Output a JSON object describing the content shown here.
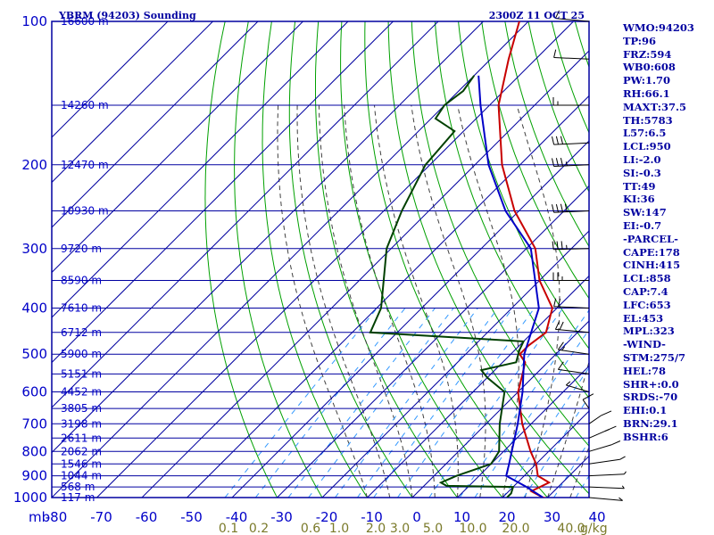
{
  "chart_data": {
    "type": "skew-t",
    "title": "YBRM (94203) Sounding",
    "valid_time": "2300Z 11 OCT 25",
    "pressure_unit_label": "mb",
    "mixing_ratio_unit_label": "g/kg",
    "pressure_ticks": [
      100,
      200,
      300,
      400,
      500,
      600,
      700,
      800,
      900,
      1000
    ],
    "temperature_ticks": [
      -80,
      -70,
      -60,
      -50,
      -40,
      -30,
      -20,
      -10,
      0,
      10,
      20,
      30,
      40
    ],
    "mixing_ratio_ticks": [
      "0.1",
      "0.2",
      "0.6",
      "1.0",
      "2.0",
      "3.0",
      "5.0",
      "10.0",
      "20.0",
      "40.0"
    ],
    "height_labels": [
      {
        "p": 100,
        "label": "16600 m"
      },
      {
        "p": 150,
        "label": "14260 m"
      },
      {
        "p": 200,
        "label": "12470 m"
      },
      {
        "p": 250,
        "label": "10930 m"
      },
      {
        "p": 300,
        "label": "9720 m"
      },
      {
        "p": 350,
        "label": "8590 m"
      },
      {
        "p": 400,
        "label": "7610 m"
      },
      {
        "p": 450,
        "label": "6712 m"
      },
      {
        "p": 500,
        "label": "5900 m"
      },
      {
        "p": 550,
        "label": "5151 m"
      },
      {
        "p": 600,
        "label": "4452 m"
      },
      {
        "p": 650,
        "label": "3805 m"
      },
      {
        "p": 700,
        "label": "3198 m"
      },
      {
        "p": 750,
        "label": "2611 m"
      },
      {
        "p": 800,
        "label": "2062 m"
      },
      {
        "p": 850,
        "label": "1546 m"
      },
      {
        "p": 900,
        "label": "1044 m"
      },
      {
        "p": 950,
        "label": "568 m"
      },
      {
        "p": 1000,
        "label": "117 m"
      }
    ],
    "series": [
      {
        "name": "Temperature",
        "color": "#c80000",
        "points": [
          {
            "p": 1005,
            "t": 30
          },
          {
            "p": 1000,
            "t": 29
          },
          {
            "p": 970,
            "t": 25
          },
          {
            "p": 930,
            "t": 27
          },
          {
            "p": 900,
            "t": 23
          },
          {
            "p": 850,
            "t": 20
          },
          {
            "p": 800,
            "t": 16
          },
          {
            "p": 700,
            "t": 8
          },
          {
            "p": 600,
            "t": 0
          },
          {
            "p": 550,
            "t": -3
          },
          {
            "p": 520,
            "t": -5
          },
          {
            "p": 500,
            "t": -8
          },
          {
            "p": 480,
            "t": -8
          },
          {
            "p": 450,
            "t": -7
          },
          {
            "p": 400,
            "t": -11
          },
          {
            "p": 350,
            "t": -20
          },
          {
            "p": 300,
            "t": -28
          },
          {
            "p": 250,
            "t": -41
          },
          {
            "p": 200,
            "t": -54
          },
          {
            "p": 150,
            "t": -68
          },
          {
            "p": 120,
            "t": -76
          },
          {
            "p": 100,
            "t": -82
          }
        ]
      },
      {
        "name": "Dewpoint",
        "color": "#004000",
        "points": [
          {
            "p": 1000,
            "t": 21
          },
          {
            "p": 980,
            "t": 21
          },
          {
            "p": 950,
            "t": 20
          },
          {
            "p": 945,
            "t": 5
          },
          {
            "p": 930,
            "t": 3
          },
          {
            "p": 900,
            "t": 5
          },
          {
            "p": 850,
            "t": 10
          },
          {
            "p": 800,
            "t": 9
          },
          {
            "p": 700,
            "t": 3
          },
          {
            "p": 600,
            "t": -3
          },
          {
            "p": 560,
            "t": -10
          },
          {
            "p": 540,
            "t": -13
          },
          {
            "p": 520,
            "t": -7
          },
          {
            "p": 490,
            "t": -9
          },
          {
            "p": 470,
            "t": -10
          },
          {
            "p": 450,
            "t": -46
          },
          {
            "p": 400,
            "t": -49
          },
          {
            "p": 300,
            "t": -61
          },
          {
            "p": 250,
            "t": -66
          },
          {
            "p": 200,
            "t": -71
          },
          {
            "p": 170,
            "t": -72
          },
          {
            "p": 160,
            "t": -79
          },
          {
            "p": 150,
            "t": -80
          },
          {
            "p": 140,
            "t": -79
          },
          {
            "p": 130,
            "t": -80
          }
        ]
      },
      {
        "name": "Parcel",
        "color": "#0000c8",
        "points": [
          {
            "p": 1000,
            "t": 29
          },
          {
            "p": 950,
            "t": 23
          },
          {
            "p": 900,
            "t": 16
          },
          {
            "p": 850,
            "t": 14
          },
          {
            "p": 700,
            "t": 7
          },
          {
            "p": 600,
            "t": 1
          },
          {
            "p": 500,
            "t": -7
          },
          {
            "p": 400,
            "t": -14
          },
          {
            "p": 300,
            "t": -29
          },
          {
            "p": 250,
            "t": -43
          },
          {
            "p": 200,
            "t": -57
          },
          {
            "p": 150,
            "t": -72
          },
          {
            "p": 130,
            "t": -79
          }
        ]
      }
    ],
    "wind_barbs": [
      {
        "p": 100,
        "dir": 290,
        "spd": 10
      },
      {
        "p": 120,
        "dir": 280,
        "spd": 10
      },
      {
        "p": 150,
        "dir": 270,
        "spd": 15
      },
      {
        "p": 180,
        "dir": 260,
        "spd": 30
      },
      {
        "p": 200,
        "dir": 260,
        "spd": 35
      },
      {
        "p": 250,
        "dir": 260,
        "spd": 40
      },
      {
        "p": 300,
        "dir": 265,
        "spd": 35
      },
      {
        "p": 350,
        "dir": 270,
        "spd": 25
      },
      {
        "p": 400,
        "dir": 280,
        "spd": 20
      },
      {
        "p": 450,
        "dir": 290,
        "spd": 20
      },
      {
        "p": 500,
        "dir": 300,
        "spd": 15
      },
      {
        "p": 550,
        "dir": 300,
        "spd": 10
      },
      {
        "p": 600,
        "dir": 320,
        "spd": 5
      },
      {
        "p": 650,
        "dir": 350,
        "spd": 10
      },
      {
        "p": 700,
        "dir": 20,
        "spd": 10
      },
      {
        "p": 750,
        "dir": 30,
        "spd": 15
      },
      {
        "p": 800,
        "dir": 40,
        "spd": 10
      },
      {
        "p": 850,
        "dir": 60,
        "spd": 10
      },
      {
        "p": 900,
        "dir": 80,
        "spd": 10
      },
      {
        "p": 950,
        "dir": 100,
        "spd": 10
      },
      {
        "p": 1000,
        "dir": 110,
        "spd": 10
      }
    ]
  },
  "indices": [
    "WMO:94203",
    "TP:96",
    "FRZ:594",
    "WB0:608",
    "PW:1.70",
    "RH:66.1",
    "MAXT:37.5",
    "TH:5783",
    "L57:6.5",
    "LCL:950",
    "LI:-2.0",
    "SI:-0.3",
    "TT:49",
    "KI:36",
    "SW:147",
    "EI:-0.7",
    "-PARCEL-",
    "CAPE:178",
    "CINH:415",
    "LCL:858",
    "CAP:7.4",
    "LFC:653",
    "EL:453",
    "MPL:323",
    "-WIND-",
    "STM:275/7",
    "HEL:78",
    "SHR+:0.0",
    "SRDS:-70",
    "EHI:0.1",
    "BRN:29.1",
    "BSHR:6"
  ],
  "colors": {
    "grid": "#0000a0",
    "dry_adiabat": "#00a000",
    "moist_adiabat": "#404040",
    "mixing_ratio": "#3399ff",
    "temperature": "#c80000",
    "dewpoint": "#004000",
    "parcel": "#0000c8",
    "wind_barb": "#000000"
  }
}
